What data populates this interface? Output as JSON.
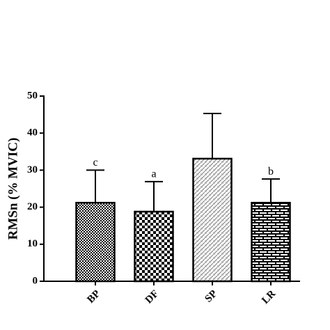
{
  "chart_data": {
    "type": "bar",
    "ylabel": "RMSn (% MVIC)",
    "categories": [
      "BP",
      "DF",
      "SP",
      "LR"
    ],
    "values": [
      21.2,
      18.8,
      33.1,
      21.2
    ],
    "errors": [
      8.8,
      8.1,
      12.2,
      6.4
    ],
    "annotations": [
      "c",
      "a",
      null,
      "b"
    ],
    "color": "#000000",
    "ylim": [
      0,
      50
    ],
    "yticks": [
      0,
      10,
      20,
      30,
      40,
      50
    ],
    "grid": false
  }
}
